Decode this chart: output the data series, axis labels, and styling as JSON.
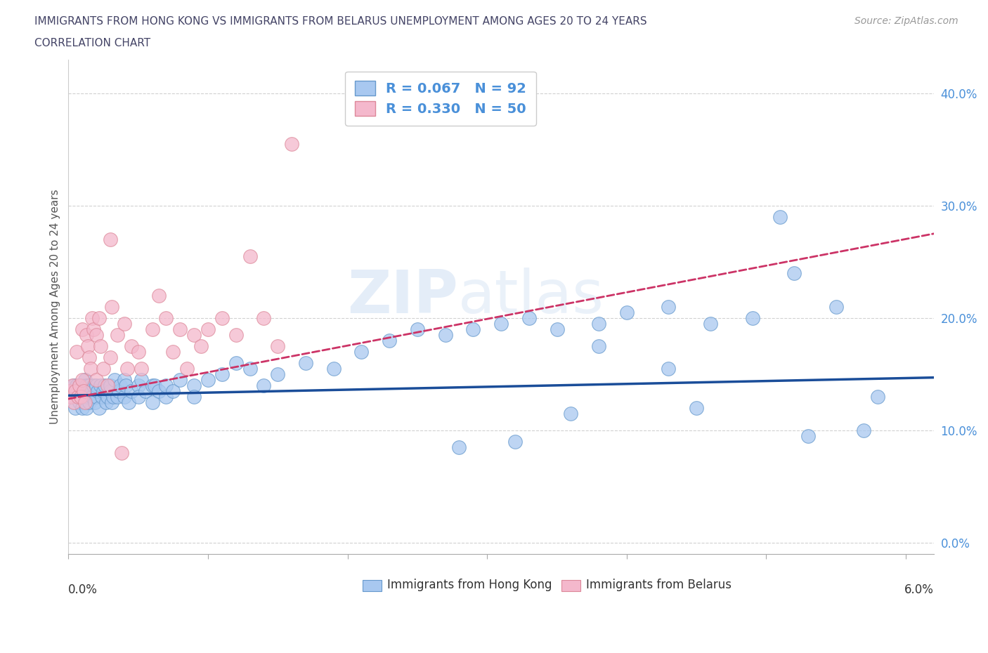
{
  "title_line1": "IMMIGRANTS FROM HONG KONG VS IMMIGRANTS FROM BELARUS UNEMPLOYMENT AMONG AGES 20 TO 24 YEARS",
  "title_line2": "CORRELATION CHART",
  "source_text": "Source: ZipAtlas.com",
  "ylabel": "Unemployment Among Ages 20 to 24 years",
  "xlim": [
    0.0,
    0.062
  ],
  "ylim": [
    -0.01,
    0.43
  ],
  "yticks": [
    0.0,
    0.1,
    0.2,
    0.3,
    0.4
  ],
  "ytick_labels": [
    "0.0%",
    "10.0%",
    "20.0%",
    "30.0%",
    "40.0%"
  ],
  "xtick_labels_bottom": [
    "0.0%",
    "6.0%"
  ],
  "hk_color": "#a8c8f0",
  "hk_edge_color": "#6699cc",
  "belarus_color": "#f4b8cc",
  "belarus_edge_color": "#dd8899",
  "hk_line_color": "#1a4d99",
  "belarus_line_color": "#cc3366",
  "R_hk": 0.067,
  "N_hk": 92,
  "R_belarus": 0.33,
  "N_belarus": 50,
  "watermark": "ZIPAtlas",
  "legend_labels": [
    "Immigrants from Hong Kong",
    "Immigrants from Belarus"
  ],
  "hk_x": [
    0.0002,
    0.0003,
    0.0004,
    0.0005,
    0.0006,
    0.0007,
    0.0008,
    0.0009,
    0.001,
    0.001,
    0.0011,
    0.0012,
    0.0012,
    0.0013,
    0.0013,
    0.0014,
    0.0015,
    0.0015,
    0.0016,
    0.0017,
    0.0018,
    0.0019,
    0.002,
    0.002,
    0.0021,
    0.0022,
    0.0023,
    0.0024,
    0.0025,
    0.0026,
    0.0027,
    0.0028,
    0.003,
    0.003,
    0.0031,
    0.0032,
    0.0033,
    0.0035,
    0.0036,
    0.0037,
    0.004,
    0.004,
    0.0041,
    0.0043,
    0.0045,
    0.005,
    0.005,
    0.0052,
    0.0055,
    0.006,
    0.006,
    0.0062,
    0.0065,
    0.007,
    0.007,
    0.0075,
    0.008,
    0.009,
    0.009,
    0.01,
    0.011,
    0.012,
    0.013,
    0.014,
    0.015,
    0.017,
    0.019,
    0.021,
    0.023,
    0.025,
    0.027,
    0.029,
    0.031,
    0.033,
    0.035,
    0.038,
    0.04,
    0.043,
    0.046,
    0.049,
    0.051,
    0.053,
    0.055,
    0.057,
    0.043,
    0.038,
    0.032,
    0.028,
    0.052,
    0.045,
    0.036,
    0.058
  ],
  "hk_y": [
    0.135,
    0.13,
    0.14,
    0.12,
    0.14,
    0.135,
    0.125,
    0.13,
    0.14,
    0.12,
    0.135,
    0.13,
    0.145,
    0.12,
    0.14,
    0.13,
    0.125,
    0.14,
    0.135,
    0.13,
    0.14,
    0.125,
    0.13,
    0.14,
    0.135,
    0.12,
    0.14,
    0.13,
    0.135,
    0.14,
    0.125,
    0.13,
    0.135,
    0.14,
    0.125,
    0.13,
    0.145,
    0.13,
    0.135,
    0.14,
    0.13,
    0.145,
    0.14,
    0.125,
    0.135,
    0.14,
    0.13,
    0.145,
    0.135,
    0.14,
    0.125,
    0.14,
    0.135,
    0.13,
    0.14,
    0.135,
    0.145,
    0.14,
    0.13,
    0.145,
    0.15,
    0.16,
    0.155,
    0.14,
    0.15,
    0.16,
    0.155,
    0.17,
    0.18,
    0.19,
    0.185,
    0.19,
    0.195,
    0.2,
    0.19,
    0.195,
    0.205,
    0.21,
    0.195,
    0.2,
    0.29,
    0.095,
    0.21,
    0.1,
    0.155,
    0.175,
    0.09,
    0.085,
    0.24,
    0.12,
    0.115,
    0.13
  ],
  "belarus_x": [
    0.0001,
    0.0002,
    0.0003,
    0.0004,
    0.0005,
    0.0006,
    0.0007,
    0.0008,
    0.0009,
    0.001,
    0.001,
    0.0011,
    0.0012,
    0.0013,
    0.0014,
    0.0015,
    0.0016,
    0.0017,
    0.0018,
    0.002,
    0.002,
    0.0022,
    0.0023,
    0.0025,
    0.003,
    0.0031,
    0.0035,
    0.004,
    0.0042,
    0.0045,
    0.005,
    0.0052,
    0.006,
    0.007,
    0.008,
    0.009,
    0.01,
    0.011,
    0.012,
    0.013,
    0.014,
    0.015,
    0.016,
    0.0065,
    0.0075,
    0.0085,
    0.0095,
    0.003,
    0.0038,
    0.0028
  ],
  "belarus_y": [
    0.135,
    0.13,
    0.14,
    0.125,
    0.135,
    0.17,
    0.13,
    0.14,
    0.13,
    0.145,
    0.19,
    0.135,
    0.125,
    0.185,
    0.175,
    0.165,
    0.155,
    0.2,
    0.19,
    0.185,
    0.145,
    0.2,
    0.175,
    0.155,
    0.165,
    0.21,
    0.185,
    0.195,
    0.155,
    0.175,
    0.17,
    0.155,
    0.19,
    0.2,
    0.19,
    0.185,
    0.19,
    0.2,
    0.185,
    0.255,
    0.2,
    0.175,
    0.355,
    0.22,
    0.17,
    0.155,
    0.175,
    0.27,
    0.08,
    0.14
  ],
  "hk_line_x0": 0.0,
  "hk_line_x1": 0.062,
  "hk_line_y0": 0.131,
  "hk_line_y1": 0.147,
  "bel_line_x0": 0.0,
  "bel_line_x1": 0.062,
  "bel_line_y0": 0.128,
  "bel_line_y1": 0.275
}
